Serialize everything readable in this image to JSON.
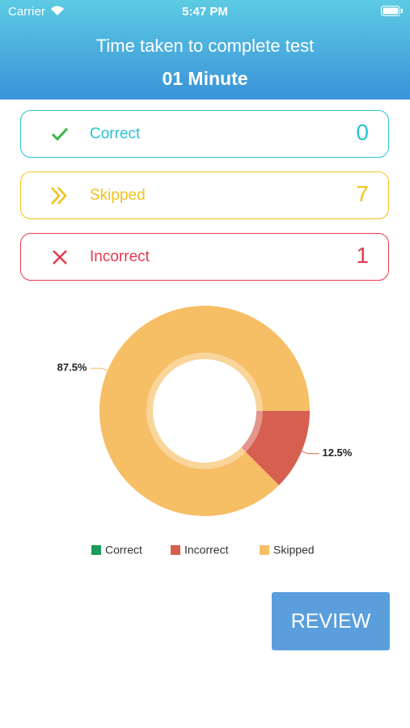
{
  "status": {
    "carrier": "Carrier",
    "time": "5:47 PM"
  },
  "header": {
    "title": "Time taken to complete test",
    "subtitle": "01 Minute"
  },
  "summary": [
    {
      "label": "Correct",
      "value": 0,
      "color": "#2ac3d0"
    },
    {
      "label": "Skipped",
      "value": 7,
      "color": "#f2c21b"
    },
    {
      "label": "Incorrect",
      "value": 1,
      "color": "#e5394e"
    }
  ],
  "chart_data": {
    "type": "pie",
    "categories": [
      "Correct",
      "Incorrect",
      "Skipped"
    ],
    "values": [
      0,
      12.5,
      87.5
    ],
    "value_labels": [
      null,
      "12.5%",
      "87.5%"
    ],
    "colors": [
      "#1a9c5c",
      "#d65f50",
      "#f6bf66"
    ],
    "legend": "bottom"
  },
  "review": "REVIEW"
}
